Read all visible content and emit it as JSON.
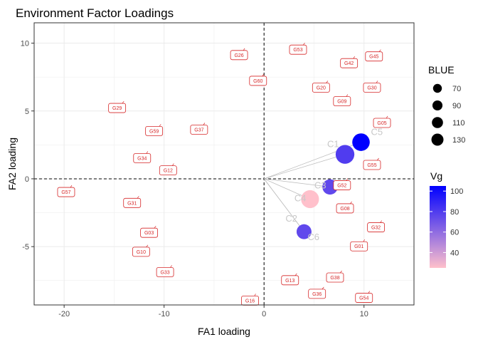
{
  "chart_data": {
    "type": "scatter",
    "title": "Environment Factor Loadings",
    "xlabel": "FA1 loading",
    "ylabel": "FA2 loading",
    "xlim": [
      -23,
      15
    ],
    "ylim": [
      -9.3,
      11.5
    ],
    "x_ticks": [
      -20,
      -10,
      0,
      10
    ],
    "y_ticks": [
      -5,
      0,
      5,
      10
    ],
    "grid": true,
    "reference_lines": {
      "x": 0,
      "y": 0,
      "style": "dashed"
    },
    "environments": [
      {
        "name": "C1",
        "x": 8.1,
        "y": 1.8,
        "BLUE": 120,
        "Vg": 80
      },
      {
        "name": "C5",
        "x": 9.7,
        "y": 2.7,
        "BLUE": 105,
        "Vg": 105
      },
      {
        "name": "C3",
        "x": 6.6,
        "y": -0.6,
        "BLUE": 80,
        "Vg": 75
      },
      {
        "name": "C4",
        "x": 4.6,
        "y": -1.5,
        "BLUE": 110,
        "Vg": 25
      },
      {
        "name": "C2",
        "x": 4.0,
        "y": -3.9,
        "BLUE": 75,
        "Vg": 75
      },
      {
        "name": "C6",
        "x": 4.0,
        "y": -3.9,
        "BLUE": 75,
        "Vg": 75
      }
    ],
    "genotypes": [
      {
        "name": "G01",
        "x": 9.5,
        "y": -4.9
      },
      {
        "name": "G03",
        "x": -11.5,
        "y": -3.9
      },
      {
        "name": "G05",
        "x": 11.8,
        "y": 4.2
      },
      {
        "name": "G08",
        "x": 8.1,
        "y": -2.1
      },
      {
        "name": "G09",
        "x": 7.8,
        "y": 5.8
      },
      {
        "name": "G10",
        "x": -12.3,
        "y": -5.3
      },
      {
        "name": "G12",
        "x": -9.6,
        "y": 0.7
      },
      {
        "name": "G13",
        "x": 2.6,
        "y": -7.4
      },
      {
        "name": "G16",
        "x": -1.4,
        "y": -8.9
      },
      {
        "name": "G20",
        "x": 5.7,
        "y": 6.8
      },
      {
        "name": "G26",
        "x": -2.5,
        "y": 9.2
      },
      {
        "name": "G29",
        "x": -14.7,
        "y": 5.3
      },
      {
        "name": "G30",
        "x": 10.8,
        "y": 6.8
      },
      {
        "name": "G31",
        "x": -13.2,
        "y": -1.7
      },
      {
        "name": "G32",
        "x": 11.2,
        "y": -3.5
      },
      {
        "name": "G33",
        "x": -9.9,
        "y": -6.8
      },
      {
        "name": "G34",
        "x": -12.2,
        "y": 1.6
      },
      {
        "name": "G36",
        "x": 5.3,
        "y": -8.4
      },
      {
        "name": "G37",
        "x": -6.5,
        "y": 3.7
      },
      {
        "name": "G38",
        "x": 7.1,
        "y": -7.2
      },
      {
        "name": "G42",
        "x": 8.5,
        "y": 8.6
      },
      {
        "name": "G45",
        "x": 11.0,
        "y": 9.1
      },
      {
        "name": "G52",
        "x": 7.8,
        "y": -0.4
      },
      {
        "name": "G53",
        "x": 3.4,
        "y": 9.6
      },
      {
        "name": "G54",
        "x": 10.0,
        "y": -8.7
      },
      {
        "name": "G55",
        "x": 10.8,
        "y": 1.1
      },
      {
        "name": "G57",
        "x": -19.8,
        "y": -0.9
      },
      {
        "name": "G59",
        "x": -11.0,
        "y": 3.6
      },
      {
        "name": "G60",
        "x": -0.6,
        "y": 7.3
      }
    ],
    "legend": {
      "position": "right",
      "size": {
        "title": "BLUE",
        "breaks": [
          70,
          90,
          110,
          130
        ]
      },
      "color": {
        "title": "Vg",
        "breaks": [
          40,
          60,
          80,
          100
        ],
        "low": "#FFC0CB",
        "high": "#0000FF",
        "min": 25,
        "max": 105
      }
    }
  }
}
